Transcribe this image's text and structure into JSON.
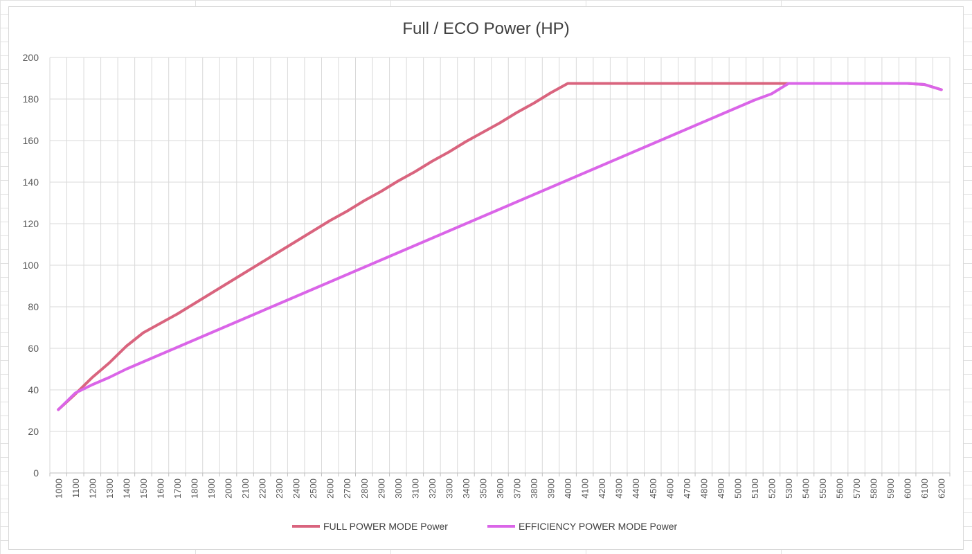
{
  "chart_data": {
    "type": "line",
    "title": "Full / ECO Power (HP)",
    "xlabel": "",
    "ylabel": "",
    "ylim": [
      0,
      200
    ],
    "yticks": [
      0,
      20,
      40,
      60,
      80,
      100,
      120,
      140,
      160,
      180,
      200
    ],
    "grid": true,
    "legend_position": "bottom",
    "categories": [
      1000,
      1100,
      1200,
      1300,
      1400,
      1500,
      1600,
      1700,
      1800,
      1900,
      2000,
      2100,
      2200,
      2300,
      2400,
      2500,
      2600,
      2700,
      2800,
      2900,
      3000,
      3100,
      3200,
      3300,
      3400,
      3500,
      3600,
      3700,
      3800,
      3900,
      4000,
      4100,
      4200,
      4300,
      4400,
      4500,
      4600,
      4700,
      4800,
      4900,
      5000,
      5100,
      5200,
      5300,
      5400,
      5500,
      5600,
      5700,
      5800,
      5900,
      6000,
      6100,
      6200
    ],
    "series": [
      {
        "name": "FULL POWER MODE Power",
        "color": "#d9647e",
        "values": [
          30.5,
          38,
          46,
          53,
          61,
          67.5,
          72,
          76.5,
          81.5,
          86.5,
          91.5,
          96.5,
          101.5,
          106.5,
          111.5,
          116.5,
          121.5,
          126,
          131,
          135.5,
          140.5,
          145,
          150,
          154.5,
          159.5,
          164,
          168.5,
          173.5,
          178,
          183,
          187.5,
          187.5,
          187.5,
          187.5,
          187.5,
          187.5,
          187.5,
          187.5,
          187.5,
          187.5,
          187.5,
          187.5,
          187.5,
          187.5,
          187.5,
          187.5,
          187.5,
          187.5,
          187.5,
          187.5,
          187.5,
          187,
          184.5
        ]
      },
      {
        "name": "EFFICIENCY POWER MODE Power",
        "color": "#da65e8",
        "values": [
          30.5,
          38.5,
          42.5,
          46,
          50,
          53.5,
          57,
          60.5,
          64,
          67.5,
          71,
          74.5,
          78,
          81.5,
          85,
          88.5,
          92,
          95.5,
          99,
          102.5,
          106,
          109.5,
          113,
          116.5,
          120,
          123.5,
          127,
          130.5,
          134,
          137.5,
          141,
          144.5,
          148,
          151.5,
          155,
          158.5,
          162,
          165.5,
          169,
          172.5,
          176,
          179.5,
          182.5,
          187.5,
          187.5,
          187.5,
          187.5,
          187.5,
          187.5,
          187.5,
          187.5,
          187,
          184.5
        ]
      }
    ]
  }
}
